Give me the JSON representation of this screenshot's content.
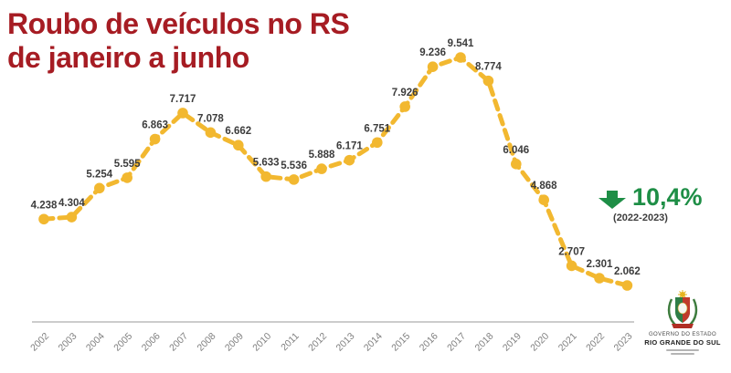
{
  "title": {
    "line1": "Roubo de veículos no RS",
    "line2": "de janeiro a junho"
  },
  "callout": {
    "value": "10,4%",
    "period": "(2022-2023)",
    "direction": "down"
  },
  "logo": {
    "line1": "GOVERNO DO ESTADO",
    "line2": "RIO GRANDE DO SUL"
  },
  "colors": {
    "title_red": "#A61C23",
    "line_yellow": "#F2B830",
    "value_label": "#3C3C3C",
    "tick_gray": "#7F7F7F",
    "axis_gray": "#CCCCCC",
    "callout_green": "#1E8E46"
  },
  "chart_data": {
    "type": "line",
    "title": "Roubo de veículos no RS de janeiro a junho",
    "categories": [
      "2002",
      "2003",
      "2004",
      "2005",
      "2006",
      "2007",
      "2008",
      "2009",
      "2010",
      "2011",
      "2012",
      "2013",
      "2014",
      "2015",
      "2016",
      "2017",
      "2018",
      "2019",
      "2020",
      "2021",
      "2022",
      "2023"
    ],
    "values": [
      4238,
      4304,
      5254,
      5595,
      6863,
      7717,
      7078,
      6662,
      5633,
      5536,
      5888,
      6171,
      6751,
      7926,
      9236,
      9541,
      8774,
      6046,
      4868,
      2707,
      2301,
      2062
    ],
    "value_labels": [
      "4.238",
      "4.304",
      "5.254",
      "5.595",
      "6.863",
      "7.717",
      "7.078",
      "6.662",
      "5.633",
      "5.536",
      "5.888",
      "6.171",
      "6.751",
      "7.926",
      "9.236",
      "9.541",
      "8.774",
      "6.046",
      "4.868",
      "2.707",
      "2.301",
      "2.062"
    ],
    "xlabel": "",
    "ylabel": "",
    "ylim": [
      0,
      10000
    ],
    "grid": false,
    "legend": false,
    "line_style": "dashed",
    "marker": "circle",
    "annotation": {
      "text": "10,4%",
      "sub": "(2022-2023)",
      "direction": "down"
    }
  }
}
